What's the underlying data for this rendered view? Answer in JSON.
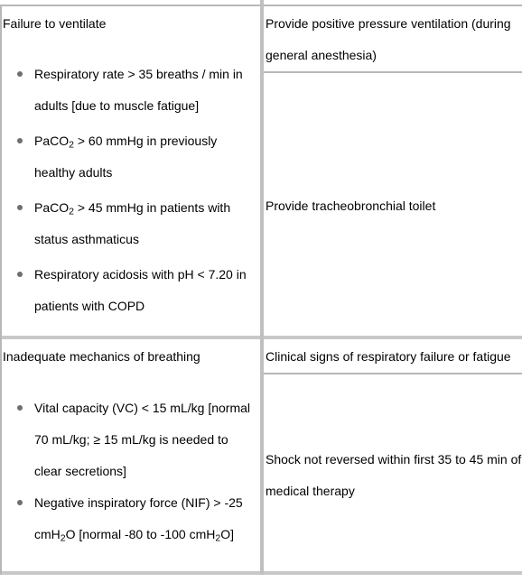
{
  "left": {
    "failure_title": "Failure to ventilate",
    "failure_items": [
      {
        "pre": "Respiratory rate > 35 breaths / min in",
        "line2": "adults [due to muscle fatigue]"
      },
      {
        "pre": "PaCO",
        "sub": "2",
        "post": " > 60 mmHg in previously",
        "line2": "healthy adults"
      },
      {
        "pre": "PaCO",
        "sub": "2",
        "post": " > 45 mmHg in patients with",
        "line2": "status asthmaticus"
      },
      {
        "pre": "Respiratory acidosis with pH < 7.20 in",
        "line2": "patients with COPD"
      }
    ],
    "mechanics_title": "Inadequate mechanics of breathing",
    "mechanics_items": [
      {
        "l1": "Vital capacity (VC) < 15 mL/kg [normal",
        "l2": "70 mL/kg; ≥ 15 mL/kg is needed to",
        "l3": "clear secretions]"
      },
      {
        "l1": "Negative inspiratory force (NIF) > -25",
        "l2a": "cmH",
        "l2sub": "2",
        "l2b": "O [normal -80 to -100 cmH",
        "l2sub2": "2",
        "l2c": "O]"
      }
    ]
  },
  "right": {
    "ppv_line1": "Provide positive pressure ventilation (during",
    "ppv_line2": "general anesthesia)",
    "toilet": "Provide tracheobronchial toilet",
    "clinical": "Clinical signs of respiratory failure or fatigue",
    "shock_line1": "Shock not reversed within first 35 to 45 min of",
    "shock_line2": "medical therapy"
  }
}
